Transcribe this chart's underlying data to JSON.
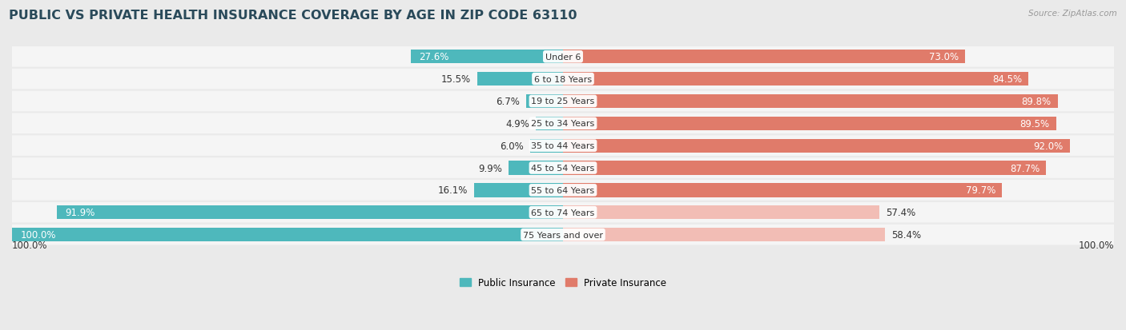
{
  "title": "PUBLIC VS PRIVATE HEALTH INSURANCE COVERAGE BY AGE IN ZIP CODE 63110",
  "source": "Source: ZipAtlas.com",
  "categories": [
    "Under 6",
    "6 to 18 Years",
    "19 to 25 Years",
    "25 to 34 Years",
    "35 to 44 Years",
    "45 to 54 Years",
    "55 to 64 Years",
    "65 to 74 Years",
    "75 Years and over"
  ],
  "public_values": [
    27.6,
    15.5,
    6.7,
    4.9,
    6.0,
    9.9,
    16.1,
    91.9,
    100.0
  ],
  "private_values": [
    73.0,
    84.5,
    89.8,
    89.5,
    92.0,
    87.7,
    79.7,
    57.4,
    58.4
  ],
  "public_color": "#4eb8bc",
  "private_color": "#e07b6a",
  "private_color_light": "#f2bdb5",
  "background_color": "#eaeaea",
  "row_bg_color": "#f5f5f5",
  "title_color": "#2a4a5a",
  "source_color": "#999999",
  "label_dark": "#333333",
  "label_white": "#ffffff",
  "bar_height": 0.62,
  "title_fontsize": 11.5,
  "label_fontsize": 8.5,
  "cat_fontsize": 8.0,
  "legend_fontsize": 8.5,
  "source_fontsize": 7.5,
  "pub_label_inside_threshold": 20,
  "priv_label_inside_threshold": 65,
  "priv_light_threshold": 65
}
